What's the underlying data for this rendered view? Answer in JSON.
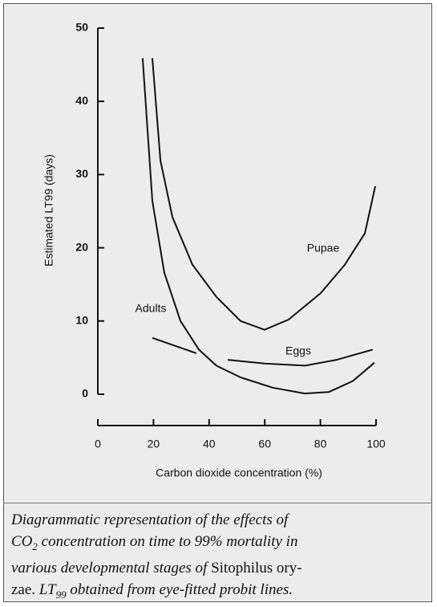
{
  "chart_data": {
    "type": "line",
    "xlabel": "Carbon dioxide concentration (%)",
    "ylabel": "Estimated LT99 (days)",
    "xlim": [
      0,
      100
    ],
    "xticks": [
      0,
      20,
      40,
      60,
      80,
      100
    ],
    "ylim": [
      0,
      50
    ],
    "yticks": [
      0,
      10,
      20,
      30,
      40,
      50
    ],
    "series": [
      {
        "name": "Adults",
        "color": "#111111",
        "x": [
          16.1,
          19.6,
          23.9,
          29.7,
          36.3,
          42.6,
          51.3,
          62.8,
          74.4,
          83,
          91.6,
          99.4
        ],
        "values": [
          45.9,
          26.4,
          16.6,
          10,
          6.1,
          3.9,
          2.3,
          0.9,
          0.1,
          0.3,
          1.8,
          4.3
        ]
      },
      {
        "name": "Pupae",
        "color": "#111111",
        "x": [
          19.6,
          22.5,
          26.8,
          34,
          42.6,
          51.3,
          59.9,
          68.6,
          80.1,
          88.8,
          96,
          99.7
        ],
        "values": [
          45.9,
          31.9,
          24.2,
          17.7,
          13.3,
          10,
          8.8,
          10.2,
          13.8,
          17.7,
          22,
          28.4
        ]
      },
      {
        "name": "Eggs",
        "color": "#111111",
        "x": [
          19.6,
          35.4,
          41,
          46.7,
          59.9,
          74.4,
          85.9,
          98.8
        ],
        "values": [
          7.7,
          5.6,
          null,
          4.7,
          4.2,
          3.9,
          4.7,
          6.1
        ]
      }
    ]
  },
  "caption": [
    "Diagrammatic representation of the effects of",
    "CO",
    "2",
    " concentration on time to 99% mortality in",
    "various developmental stages of ",
    "Sitophilus ory-",
    "zae.",
    " LT",
    "99",
    " obtained from eye-fitted probit lines."
  ]
}
